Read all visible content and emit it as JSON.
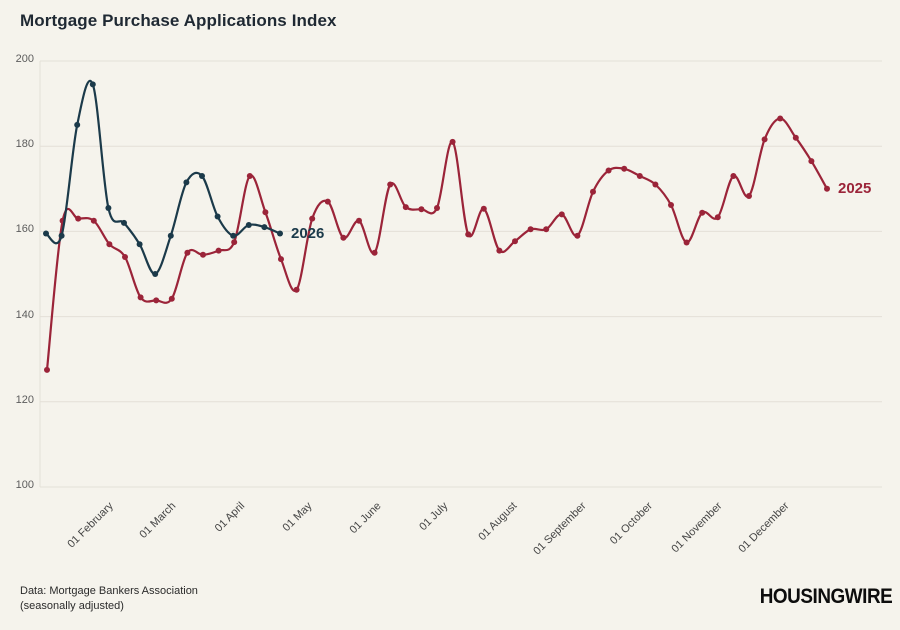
{
  "title": "Mortgage Purchase Applications Index",
  "footer": {
    "source_line1": "Data: Mortgage Bankers Association",
    "source_line2": "(seasonally adjusted)",
    "logo_text": "HOUSINGWIRE"
  },
  "colors": {
    "background": "#f5f3ec",
    "gridline": "#e3e0d7",
    "axis_text": "#5c5c5c",
    "title_text": "#1f2933",
    "series_2025": "#9b2439",
    "series_2026": "#1b3a4a"
  },
  "chart_data": {
    "type": "line",
    "title": "Mortgage Purchase Applications Index",
    "xlabel": "",
    "ylabel": "",
    "ylim": [
      100,
      207
    ],
    "y_ticks": [
      200,
      180,
      160,
      140,
      120,
      100
    ],
    "grid": "horizontal only",
    "legend_position": "labels at line ends",
    "x_tick_labels": [
      "01 February",
      "01 March",
      "01 April",
      "01 May",
      "01 June",
      "01 July",
      "01 August",
      "01 September",
      "01 October",
      "01 November",
      "01 December"
    ],
    "x_tick_week_index": [
      4.14,
      8.14,
      12.57,
      16.86,
      21.29,
      25.57,
      30.0,
      34.43,
      38.71,
      43.14,
      47.43
    ],
    "x_unit": "weekly observations",
    "series": [
      {
        "name": "2025",
        "color": "#9b2439",
        "values": [
          127.5,
          162.5,
          163,
          162.5,
          157,
          154,
          144.5,
          143.8,
          144.2,
          155,
          154.5,
          155.5,
          157.5,
          173,
          164.5,
          153.5,
          146.3,
          163,
          167,
          158.5,
          162.5,
          155,
          171,
          165.7,
          165.2,
          165.5,
          181,
          159.3,
          165.3,
          155.5,
          157.7,
          160.5,
          160.5,
          164,
          159,
          169.3,
          174.3,
          174.7,
          173,
          171,
          166.2,
          157.4,
          164.4,
          163.3,
          173,
          168.3,
          181.6,
          186.5,
          182,
          176.5,
          170
        ]
      },
      {
        "name": "2026",
        "color": "#1b3a4a",
        "values": [
          159.5,
          159,
          185,
          194.5,
          165.5,
          162,
          157,
          150,
          159,
          171.5,
          173,
          163.5,
          159,
          161.5,
          161,
          159.5
        ]
      }
    ]
  }
}
